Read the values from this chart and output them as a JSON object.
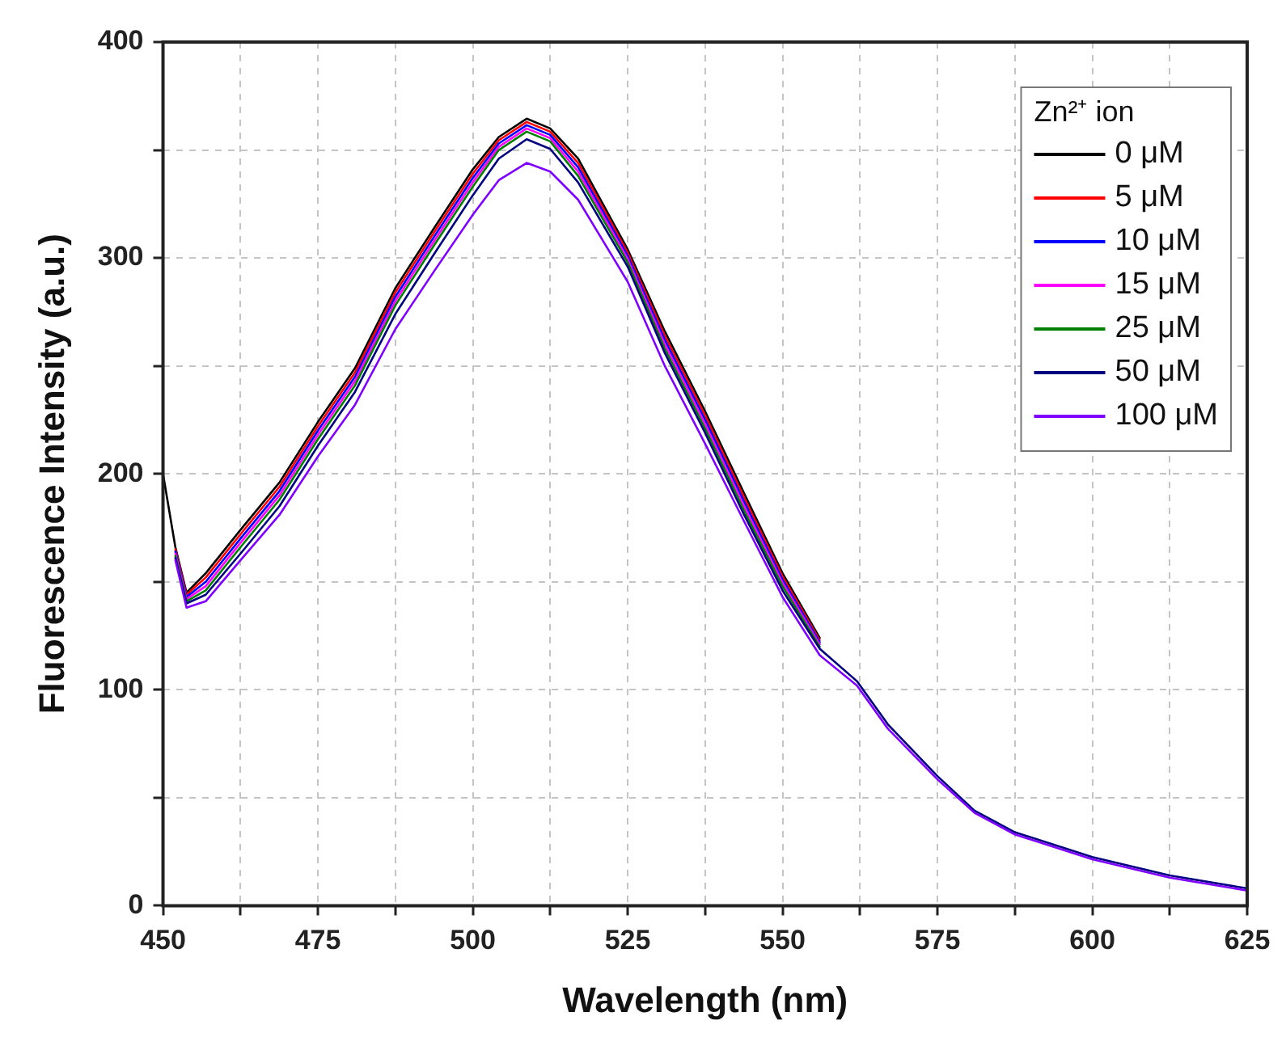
{
  "chart_data": {
    "type": "line",
    "xlabel": "Wavelength (nm)",
    "ylabel": "Fluorescence Intensity (a.u.)",
    "legend_title": "Zn²⁺ ion",
    "legend": "top right",
    "grid": true,
    "marker": "none",
    "line_style": "solid",
    "x": [
      450,
      452,
      453.8,
      456.9,
      462.5,
      468.8,
      475,
      481,
      487.5,
      493.8,
      500,
      504.2,
      508.7,
      512.5,
      517,
      525,
      531,
      537.5,
      543.8,
      550,
      556,
      562,
      567,
      575,
      581,
      587.5,
      600,
      612.5,
      625
    ],
    "xlim": [
      450,
      625
    ],
    "xticks": [
      450,
      {
        "value": 462.5,
        "label": null
      },
      475,
      {
        "value": 487.5,
        "label": null
      },
      500,
      {
        "value": 512.5,
        "label": null
      },
      525,
      {
        "value": 537.5,
        "label": null
      },
      550,
      {
        "value": 562.5,
        "label": null
      },
      575,
      {
        "value": 587.5,
        "label": null
      },
      600,
      {
        "value": 612.5,
        "label": null
      },
      625
    ],
    "ylim": [
      0,
      400
    ],
    "yticks": [
      0,
      {
        "value": 50,
        "label": null
      },
      100,
      {
        "value": 150,
        "label": null
      },
      200,
      {
        "value": 250,
        "label": null
      },
      300,
      {
        "value": 350,
        "label": null
      },
      400
    ],
    "series": [
      {
        "name": "0 μM",
        "color": "#000000",
        "values": [
          200,
          166,
          145,
          154,
          174,
          196,
          224,
          249,
          286,
          314,
          341,
          356,
          364.5,
          360,
          346,
          304,
          266,
          229,
          191,
          154,
          124,
          null,
          null,
          null,
          null,
          null,
          null,
          null,
          null
        ]
      },
      {
        "name": "5 μM",
        "color": "#ff0000",
        "values": [
          null,
          165,
          144,
          152,
          172,
          194,
          222,
          247,
          284,
          312,
          339,
          354.5,
          363,
          358.5,
          344,
          302.5,
          264,
          227,
          189,
          152.5,
          123,
          null,
          null,
          null,
          null,
          null,
          null,
          null,
          null
        ]
      },
      {
        "name": "10 μM",
        "color": "#0000ff",
        "values": [
          null,
          164,
          143,
          150,
          170,
          192,
          220,
          245,
          282,
          310,
          337,
          353,
          361.5,
          357,
          342,
          301,
          262,
          225,
          187,
          151,
          122,
          null,
          null,
          null,
          null,
          null,
          null,
          null,
          null
        ]
      },
      {
        "name": "15 μM",
        "color": "#ff00ff",
        "values": [
          null,
          163,
          142,
          148,
          168,
          190,
          218,
          243,
          280,
          308,
          335,
          351.5,
          360,
          355.5,
          340,
          299.5,
          260,
          223,
          185,
          149.5,
          121,
          null,
          null,
          null,
          null,
          null,
          null,
          null,
          null
        ]
      },
      {
        "name": "25 μM",
        "color": "#008000",
        "values": [
          null,
          162,
          141,
          146,
          166,
          188,
          216,
          241,
          278,
          306,
          333,
          350,
          358.5,
          354,
          338,
          298,
          258,
          221,
          183,
          148,
          120,
          null,
          null,
          null,
          null,
          null,
          null,
          null,
          null
        ]
      },
      {
        "name": "50 μM",
        "color": "#000080",
        "values": [
          null,
          161,
          140,
          144,
          163,
          185,
          213,
          238,
          274,
          302,
          329,
          346,
          355,
          350.5,
          335,
          296,
          256,
          219,
          181,
          146,
          119,
          104,
          84,
          60,
          44,
          34,
          22.5,
          14,
          8
        ]
      },
      {
        "name": "100 μM",
        "color": "#8000ff",
        "values": [
          null,
          160,
          138,
          141,
          160,
          181,
          208,
          232,
          267,
          294,
          320,
          336,
          344,
          340,
          327,
          289,
          250,
          214,
          178,
          143,
          116,
          102,
          82,
          58.5,
          43,
          33,
          21.5,
          13,
          7
        ]
      }
    ]
  }
}
